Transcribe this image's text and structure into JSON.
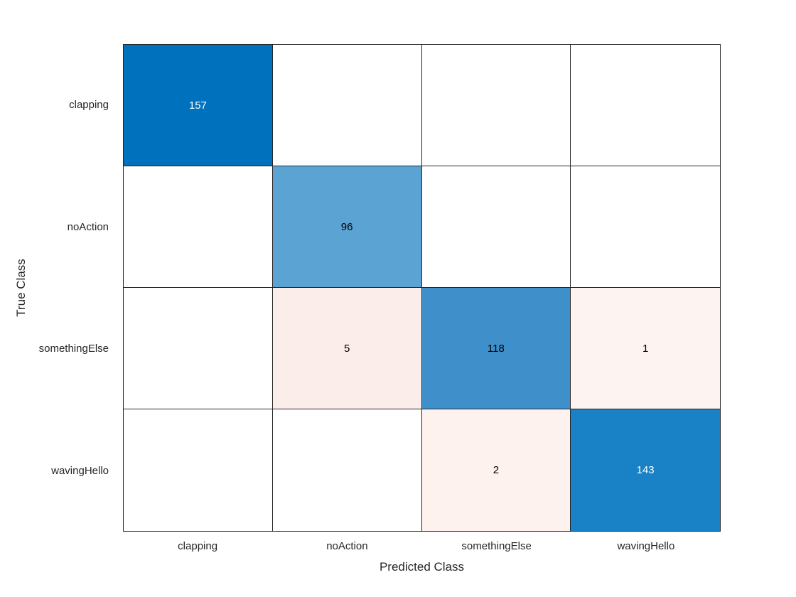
{
  "chart_data": {
    "type": "heatmap",
    "subtype": "confusion-matrix",
    "title": "",
    "xlabel": "Predicted Class",
    "ylabel": "True Class",
    "x_categories": [
      "clapping",
      "noAction",
      "somethingElse",
      "wavingHello"
    ],
    "y_categories": [
      "clapping",
      "noAction",
      "somethingElse",
      "wavingHello"
    ],
    "matrix": [
      [
        157,
        0,
        0,
        0
      ],
      [
        0,
        96,
        0,
        0
      ],
      [
        0,
        5,
        118,
        1
      ],
      [
        0,
        0,
        2,
        143
      ]
    ],
    "cell_display": [
      [
        "157",
        "",
        "",
        ""
      ],
      [
        "",
        "96",
        "",
        ""
      ],
      [
        "",
        "5",
        "118",
        "1"
      ],
      [
        "",
        "",
        "2",
        "143"
      ]
    ],
    "cell_bg": [
      [
        "#0072bd",
        "#ffffff",
        "#ffffff",
        "#ffffff"
      ],
      [
        "#ffffff",
        "#5ba3d3",
        "#ffffff",
        "#ffffff"
      ],
      [
        "#ffffff",
        "#fbeeea",
        "#3f90ca",
        "#fdf3f0"
      ],
      [
        "#ffffff",
        "#ffffff",
        "#fdf2ee",
        "#1981c5"
      ]
    ],
    "cell_fg": [
      [
        "#ffffff",
        "#000000",
        "#000000",
        "#000000"
      ],
      [
        "#000000",
        "#000000",
        "#000000",
        "#000000"
      ],
      [
        "#000000",
        "#000000",
        "#000000",
        "#000000"
      ],
      [
        "#000000",
        "#000000",
        "#000000",
        "#ffffff"
      ]
    ],
    "layout": {
      "grid_lines": "on",
      "legend": "none",
      "colors": {
        "diagonal_accent": "#0072bd",
        "off_diagonal_accent": "#d95319",
        "grid_line": "#262626",
        "label_text": "#262626",
        "background": "#ffffff"
      }
    }
  }
}
